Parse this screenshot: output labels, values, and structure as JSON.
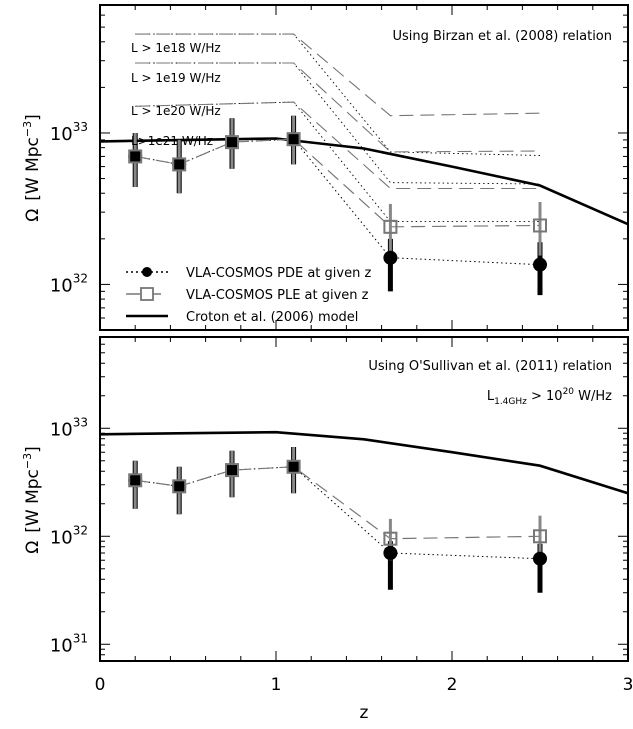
{
  "chart_data": [
    {
      "type": "line",
      "panel": "top",
      "annotation": "Using Birzan et al. (2008) relation",
      "ylabel_parts": {
        "omega": "Ω",
        "open": "[W Mpc",
        "exp": "−3",
        "close": "]"
      },
      "xlim": [
        0,
        3
      ],
      "ylim": [
        5e+31,
        7e+33
      ],
      "yscale": "log",
      "yticks": [
        {
          "value": 1e+32,
          "base": "10",
          "exp": "32"
        },
        {
          "value": 1e+33,
          "base": "10",
          "exp": "33"
        }
      ],
      "pde_points": {
        "name": "VLA-COSMOS PDE at given z",
        "x": [
          0.2,
          0.45,
          0.75,
          1.1,
          1.65,
          2.5
        ],
        "y": [
          7e+32,
          6.2e+32,
          8.7e+32,
          9.1e+32,
          1.5e+32,
          1.35e+32
        ],
        "yerr_low": [
          4.4e+32,
          4e+32,
          5.8e+32,
          6.2e+32,
          9e+31,
          8.5e+31
        ],
        "yerr_high": [
          1e+33,
          9e+32,
          1.25e+33,
          1.3e+33,
          2e+32,
          1.9e+32
        ]
      },
      "ple_points": {
        "name": "VLA-COSMOS PLE at given z",
        "x": [
          0.2,
          0.45,
          0.75,
          1.1,
          1.65,
          2.5
        ],
        "y": [
          7e+32,
          6.2e+32,
          8.7e+32,
          9.1e+32,
          2.4e+32,
          2.45e+32
        ],
        "yerr_low": [
          4.4e+32,
          4e+32,
          5.8e+32,
          6.2e+32,
          1.5e+32,
          1.55e+32
        ],
        "yerr_high": [
          1e+33,
          9e+32,
          1.25e+33,
          1.3e+33,
          3.4e+32,
          3.5e+32
        ]
      },
      "model": {
        "name": "Croton et al. (2006) model",
        "x": [
          0,
          0.5,
          1.0,
          1.5,
          2.0,
          2.5,
          3.0
        ],
        "y": [
          8.8e+32,
          9e+32,
          9.2e+32,
          7.9e+32,
          6e+32,
          4.5e+32,
          2.5e+32
        ]
      },
      "threshold_labels": [
        "L > 1e18 W/Hz",
        "L > 1e19 W/Hz",
        "L > 1e20 W/Hz",
        "L>1e21 W/Hz"
      ],
      "threshold_curves": [
        {
          "x": [
            0.2,
            1.1,
            1.65,
            2.5
          ],
          "pde": [
            4.5e+33,
            4.5e+33,
            7.5e+32,
            7.1e+32
          ],
          "ple": [
            4.5e+33,
            4.5e+33,
            1.3e+33,
            1.35e+33
          ]
        },
        {
          "x": [
            0.2,
            1.1,
            1.65,
            2.5
          ],
          "pde": [
            2.9e+33,
            2.9e+33,
            4.7e+32,
            4.6e+32
          ],
          "ple": [
            2.9e+33,
            2.9e+33,
            7.5e+32,
            7.6e+32
          ]
        },
        {
          "x": [
            0.2,
            1.1,
            1.65,
            2.5
          ],
          "pde": [
            1.5e+33,
            1.6e+33,
            2.6e+32,
            2.6e+32
          ],
          "ple": [
            1.5e+33,
            1.6e+33,
            4.3e+32,
            4.3e+32
          ]
        }
      ]
    },
    {
      "type": "line",
      "panel": "bottom",
      "annotation": "Using O'Sullivan et al. (2011) relation",
      "annotation2": {
        "L": "L",
        "sub": "1.4GHz",
        "gt": " > 10",
        "exp": "20",
        "unit": " W/Hz"
      },
      "ylabel_parts": {
        "omega": "Ω",
        "open": "[W Mpc",
        "exp": "−3",
        "close": "]"
      },
      "xlabel": "z",
      "xlim": [
        0,
        3
      ],
      "xticks": [
        "0",
        "1",
        "2",
        "3"
      ],
      "ylim": [
        7e+30,
        7e+33
      ],
      "yscale": "log",
      "yticks": [
        {
          "value": 1e+31,
          "base": "10",
          "exp": "31"
        },
        {
          "value": 1e+32,
          "base": "10",
          "exp": "32"
        },
        {
          "value": 1e+33,
          "base": "10",
          "exp": "33"
        }
      ],
      "pde_points": {
        "x": [
          0.2,
          0.45,
          0.75,
          1.1,
          1.65,
          2.5
        ],
        "y": [
          3.3e+32,
          2.9e+32,
          4.1e+32,
          4.4e+32,
          7e+31,
          6.2e+31
        ],
        "yerr_low": [
          1.8e+32,
          1.6e+32,
          2.3e+32,
          2.5e+32,
          3.2e+31,
          3e+31
        ],
        "yerr_high": [
          5e+32,
          4.4e+32,
          6.2e+32,
          6.7e+32,
          9e+31,
          8.5e+31
        ]
      },
      "ple_points": {
        "x": [
          0.2,
          0.45,
          0.75,
          1.1,
          1.65,
          2.5
        ],
        "y": [
          3.3e+32,
          2.9e+32,
          4.1e+32,
          4.4e+32,
          9.5e+31,
          1e+32
        ],
        "yerr_low": [
          1.8e+32,
          1.6e+32,
          2.3e+32,
          2.5e+32,
          6e+31,
          6.3e+31
        ],
        "yerr_high": [
          5e+32,
          4.4e+32,
          6.2e+32,
          6.7e+32,
          1.45e+32,
          1.55e+32
        ]
      },
      "model": {
        "x": [
          0,
          0.5,
          1.0,
          1.5,
          2.0,
          2.5,
          3.0
        ],
        "y": [
          8.8e+32,
          9e+32,
          9.2e+32,
          7.9e+32,
          6e+32,
          4.5e+32,
          2.5e+32
        ]
      }
    }
  ],
  "style": {
    "pde_color": "#000000",
    "ple_color": "#777777",
    "model_color": "#000000",
    "dashed_color": "#777777"
  }
}
